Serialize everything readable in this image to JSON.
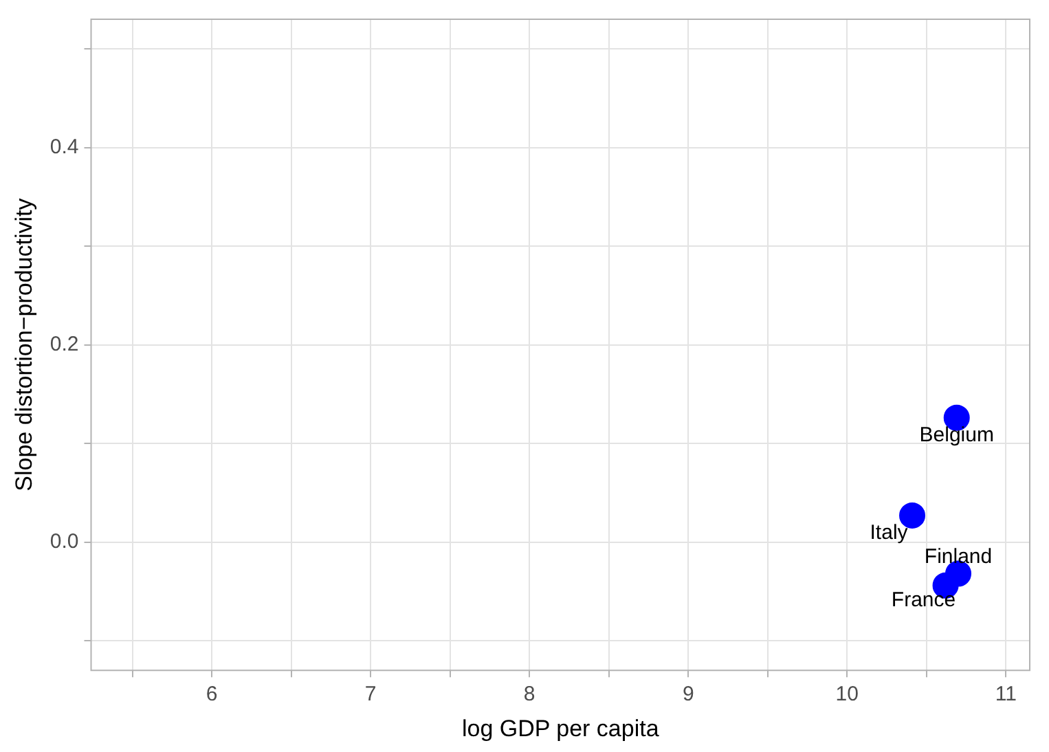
{
  "chart_data": {
    "type": "scatter",
    "xlabel": "log GDP per capita",
    "ylabel": "Slope distortion−productivity",
    "series": [
      {
        "color": "#0000ff",
        "x": [
          10.69,
          10.41,
          10.7,
          10.62
        ],
        "values": [
          0.126,
          0.027,
          -0.032,
          -0.044
        ]
      }
    ],
    "annotations": [
      {
        "text": "Belgium",
        "x": 10.69,
        "y": 0.126
      },
      {
        "text": "Italy",
        "x": 10.41,
        "y": 0.027
      },
      {
        "text": "Finland",
        "x": 10.7,
        "y": -0.032
      },
      {
        "text": "France",
        "x": 10.62,
        "y": -0.044
      }
    ],
    "xlim": [
      5.24,
      11.15
    ],
    "ylim": [
      -0.13,
      0.53
    ],
    "xticks": [
      {
        "value": 5.5,
        "label": null
      },
      6,
      {
        "value": 6.5,
        "label": null
      },
      7,
      {
        "value": 7.5,
        "label": null
      },
      8,
      {
        "value": 8.5,
        "label": null
      },
      9,
      {
        "value": 9.5,
        "label": null
      },
      10,
      {
        "value": 10.5,
        "label": null
      },
      11
    ],
    "yticks": [
      {
        "value": -0.1,
        "label": null
      },
      {
        "value": 0,
        "label": "0.0"
      },
      {
        "value": 0.1,
        "label": null
      },
      0.2,
      {
        "value": 0.3,
        "label": null
      },
      0.4,
      {
        "value": 0.5,
        "label": null
      }
    ],
    "grid": true,
    "marker": "circle",
    "legend": false
  }
}
